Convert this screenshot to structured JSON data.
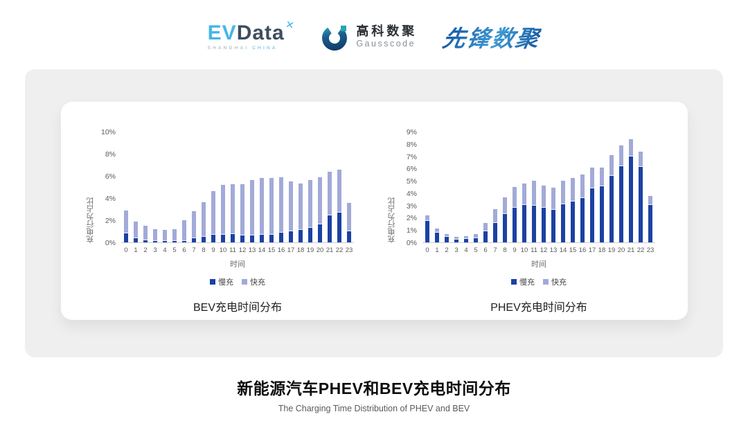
{
  "header": {
    "evdata": {
      "ev": "EV",
      "data": "Data",
      "mark": "✕",
      "sub_left": "SHANGHAI",
      "sub_right": "CHINA"
    },
    "gausscode": {
      "name_cn": "高科数聚",
      "name_en": "Gausscode"
    },
    "xianfeng": {
      "name": "先锋数聚"
    }
  },
  "colors": {
    "bar_slow": "#1b41a3",
    "bar_fast": "#a2aad8",
    "panel_bg": "#efefef",
    "card_bg": "#ffffff",
    "evdata_blue": "#45b6e8",
    "evdata_dark": "#3d4e5e",
    "gausscode_navy": "#16486e",
    "gausscode_teal": "#27a3b4",
    "xianfeng_blue": "#2e86c8"
  },
  "chart_data": [
    {
      "type": "bar",
      "stacked": true,
      "title": "BEV充电时间分布",
      "xlabel": "时间",
      "ylabel": "充电行为占比",
      "categories": [
        "0",
        "1",
        "2",
        "3",
        "4",
        "5",
        "6",
        "7",
        "8",
        "9",
        "10",
        "11",
        "12",
        "13",
        "14",
        "15",
        "16",
        "17",
        "18",
        "19",
        "20",
        "21",
        "22",
        "23"
      ],
      "ylim": [
        0,
        10
      ],
      "ytick_step": 2,
      "ytick_suffix": "%",
      "grid": false,
      "legend_position": "bottom",
      "series": [
        {
          "name": "慢充",
          "color": "#1b41a3",
          "values": [
            0.8,
            0.35,
            0.2,
            0.1,
            0.1,
            0.1,
            0.15,
            0.35,
            0.5,
            0.7,
            0.7,
            0.75,
            0.6,
            0.6,
            0.7,
            0.7,
            0.85,
            1.0,
            1.1,
            1.3,
            1.65,
            2.45,
            2.7,
            1.0
          ]
        },
        {
          "name": "快充",
          "color": "#a2aad8",
          "values": [
            2.1,
            1.55,
            1.3,
            1.1,
            1.0,
            1.1,
            1.85,
            2.45,
            3.1,
            3.9,
            4.5,
            4.5,
            4.65,
            5.05,
            5.1,
            5.1,
            5.0,
            4.5,
            4.2,
            4.3,
            4.25,
            3.9,
            3.85,
            2.55
          ]
        }
      ]
    },
    {
      "type": "bar",
      "stacked": true,
      "title": "PHEV充电时间分布",
      "xlabel": "时间",
      "ylabel": "充电行为占比",
      "categories": [
        "0",
        "1",
        "2",
        "3",
        "4",
        "5",
        "6",
        "7",
        "8",
        "9",
        "10",
        "11",
        "12",
        "13",
        "14",
        "15",
        "16",
        "17",
        "18",
        "19",
        "20",
        "21",
        "22",
        "23"
      ],
      "ylim": [
        0,
        9
      ],
      "ytick_step": 1,
      "ytick_suffix": "%",
      "grid": false,
      "legend_position": "bottom",
      "series": [
        {
          "name": "慢充",
          "color": "#1b41a3",
          "values": [
            1.75,
            0.8,
            0.45,
            0.25,
            0.3,
            0.35,
            0.9,
            1.6,
            2.3,
            2.8,
            3.05,
            3.0,
            2.8,
            2.65,
            3.1,
            3.3,
            3.6,
            4.4,
            4.55,
            5.4,
            6.2,
            7.0,
            6.15,
            3.05
          ]
        },
        {
          "name": "快充",
          "color": "#a2aad8",
          "values": [
            0.45,
            0.35,
            0.25,
            0.2,
            0.2,
            0.35,
            0.65,
            1.1,
            1.35,
            1.7,
            1.75,
            2.0,
            1.8,
            1.8,
            1.9,
            1.95,
            1.9,
            1.7,
            1.55,
            1.7,
            1.7,
            1.4,
            1.2,
            0.75
          ]
        }
      ]
    }
  ],
  "footer": {
    "title": "新能源汽车PHEV和BEV充电时间分布",
    "subtitle": "The Charging Time Distribution of PHEV and BEV"
  }
}
